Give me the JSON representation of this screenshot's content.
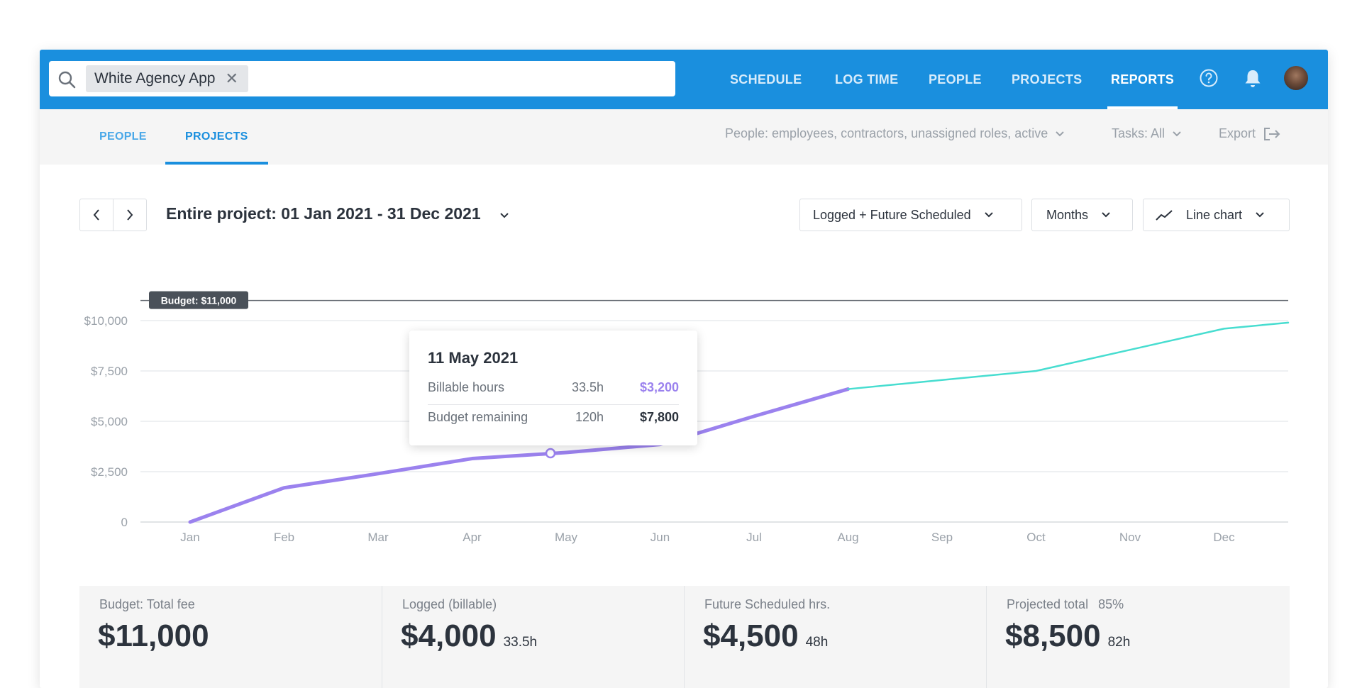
{
  "search": {
    "chip_label": "White Agency App",
    "remove_symbol": "✕"
  },
  "nav": [
    {
      "label": "SCHEDULE",
      "active": false
    },
    {
      "label": "LOG TIME",
      "active": false
    },
    {
      "label": "PEOPLE",
      "active": false
    },
    {
      "label": "PROJECTS",
      "active": false
    },
    {
      "label": "REPORTS",
      "active": true
    }
  ],
  "topbar_icons": [
    "help-icon",
    "bell-icon",
    "avatar"
  ],
  "subtabs": [
    {
      "label": "PEOPLE",
      "active": false
    },
    {
      "label": "PROJECTS",
      "active": true
    }
  ],
  "filters": {
    "people": "People: employees, contractors, unassigned roles, active",
    "tasks": "Tasks: All",
    "export": "Export"
  },
  "toolbar": {
    "range_title": "Entire project: 01 Jan 2021 - 31 Dec 2021",
    "data_mode": "Logged + Future Scheduled",
    "period": "Months",
    "chart_type": "Line chart"
  },
  "colors": {
    "brand": "#1a8fde",
    "logged_line": "#9b82ee",
    "scheduled_line": "#47ddd0",
    "budget_line": "#5f656d",
    "text_dark": "#2c333d"
  },
  "chart_data": {
    "type": "line",
    "x": [
      "Jan",
      "Feb",
      "Mar",
      "Apr",
      "May",
      "Jun",
      "Jul",
      "Aug",
      "Sep",
      "Oct",
      "Nov",
      "Dec"
    ],
    "y_ticks": [
      "0",
      "$2,500",
      "$5,000",
      "$7,500",
      "$10,000"
    ],
    "ylim": [
      0,
      11000
    ],
    "grid": true,
    "budget": {
      "label": "Budget: $11,000",
      "value": 11000
    },
    "series": [
      {
        "kind": "logged",
        "points": [
          [
            "Jan",
            0
          ],
          [
            "Feb",
            1700
          ],
          [
            "Mar",
            2400
          ],
          [
            "Apr",
            3150
          ],
          [
            "May",
            3450
          ],
          [
            "Jun",
            3850
          ],
          [
            "Jul",
            5250
          ],
          [
            "Aug",
            6600
          ]
        ]
      },
      {
        "kind": "future_scheduled",
        "points": [
          [
            "Aug",
            6600
          ],
          [
            "Sep",
            7050
          ],
          [
            "Oct",
            7500
          ],
          [
            "Nov",
            8550
          ],
          [
            "Dec",
            9600
          ],
          [
            "end",
            9900
          ]
        ]
      }
    ],
    "highlight": {
      "x": "May",
      "value": 3450
    }
  },
  "tooltip": {
    "date": "11 May 2021",
    "rows": [
      {
        "label": "Billable hours",
        "hours": "33.5h",
        "amount": "$3,200"
      },
      {
        "label": "Budget remaining",
        "hours": "120h",
        "amount": "$7,800"
      }
    ]
  },
  "stats": [
    {
      "label": "Budget: Total fee",
      "value": "$11,000",
      "sub": ""
    },
    {
      "label": "Logged (billable)",
      "value": "$4,000",
      "sub": "33.5h"
    },
    {
      "label": "Future Scheduled hrs.",
      "value": "$4,500",
      "sub": "48h"
    },
    {
      "label": "Projected total",
      "pct": "85%",
      "value": "$8,500",
      "sub": "82h"
    }
  ]
}
